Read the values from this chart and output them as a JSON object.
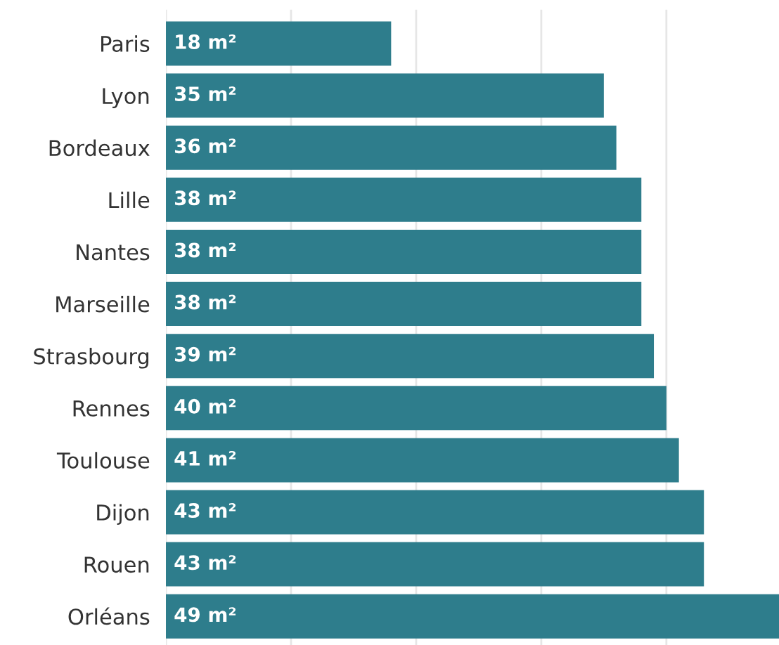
{
  "chart_data": {
    "type": "bar",
    "orientation": "horizontal",
    "categories": [
      "Paris",
      "Lyon",
      "Bordeaux",
      "Lille",
      "Nantes",
      "Marseille",
      "Strasbourg",
      "Rennes",
      "Toulouse",
      "Dijon",
      "Rouen",
      "Orléans"
    ],
    "values": [
      18,
      35,
      36,
      38,
      38,
      38,
      39,
      40,
      41,
      43,
      43,
      49
    ],
    "value_labels": [
      "18 m²",
      "35 m²",
      "36 m²",
      "38 m²",
      "38 m²",
      "38 m²",
      "39 m²",
      "40 m²",
      "41 m²",
      "43 m²",
      "43 m²",
      "49 m²"
    ],
    "color": "#2e7d8c",
    "xlim": [
      0,
      49
    ],
    "xticks": [
      {
        "value": 0,
        "label": null
      },
      {
        "value": 10,
        "label": null
      },
      {
        "value": 20,
        "label": null
      },
      {
        "value": 30,
        "label": null
      },
      {
        "value": 40,
        "label": null
      }
    ],
    "grid": "x",
    "tick_labels": "y"
  }
}
